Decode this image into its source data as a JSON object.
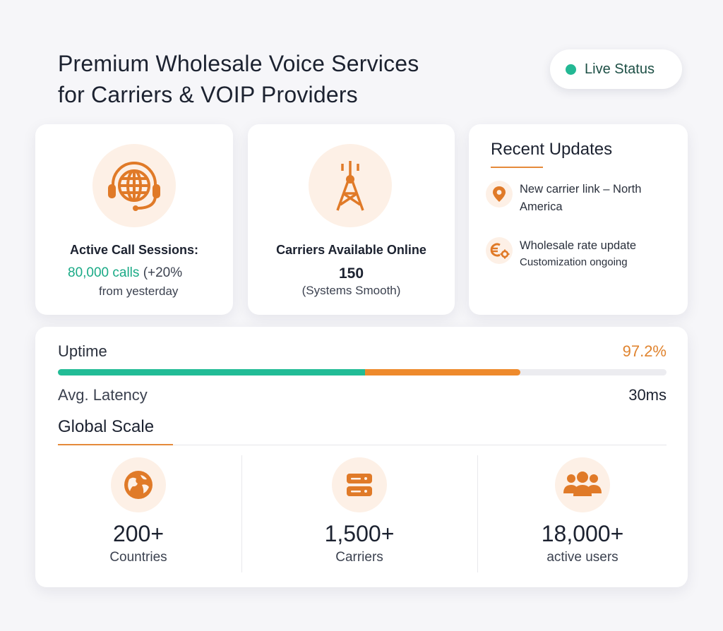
{
  "header": {
    "title_line1": "Premium Wholesale Voice Services",
    "title_line2": "for Carriers & VOIP Providers",
    "status_label": "Live Status"
  },
  "cards": {
    "call_sessions": {
      "label": "Active Call Sessions:",
      "value": "80,000 calls",
      "change": "(+20%",
      "sub": "from yesterday",
      "icon": "headset-globe-icon"
    },
    "carriers": {
      "label": "Carriers Available Online",
      "value": "150",
      "sub": "(Systems Smooth)",
      "icon": "antenna-tower-icon"
    },
    "updates": {
      "title": "Recent Updates",
      "items": [
        {
          "icon": "location-pin-icon",
          "line1": "New carrier link – North",
          "line2": "America"
        },
        {
          "icon": "euro-gear-icon",
          "line1": "Wholesale rate update",
          "line2": "Customization ongoing"
        }
      ]
    }
  },
  "metrics": {
    "uptime_label": "Uptime",
    "uptime_value": "97.2%",
    "uptime_bar": {
      "green_fraction": 0.505,
      "orange_fraction": 0.255
    },
    "latency_label": "Avg. Latency",
    "latency_value": "30ms"
  },
  "global_scale": {
    "title": "Global Scale",
    "stats": [
      {
        "icon": "globe-icon",
        "value": "200+",
        "label": "Countries"
      },
      {
        "icon": "server-icon",
        "value": "1,500+",
        "label": "Carriers"
      },
      {
        "icon": "users-icon",
        "value": "18,000+",
        "label": "active users"
      }
    ]
  },
  "colors": {
    "accent_orange": "#e58a3a",
    "accent_green": "#22bc96",
    "icon_bg": "#fdf0e6"
  }
}
